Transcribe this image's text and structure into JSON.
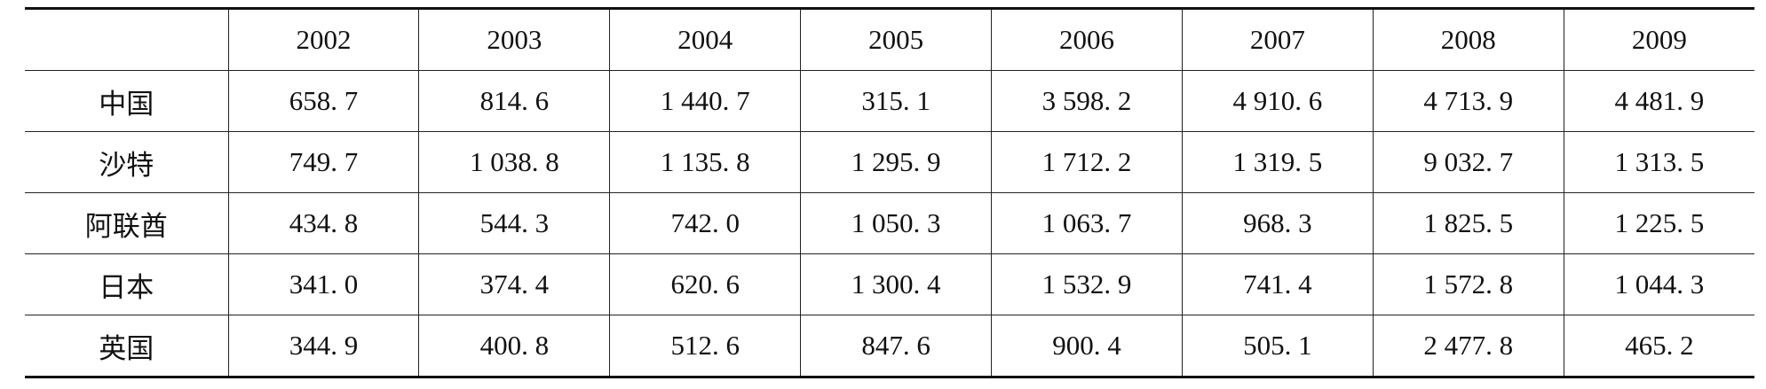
{
  "header": {
    "years": [
      "2002",
      "2003",
      "2004",
      "2005",
      "2006",
      "2007",
      "2008",
      "2009"
    ]
  },
  "table": {
    "rows": [
      {
        "label": "中国",
        "values": [
          "658. 7",
          "814. 6",
          "1 440. 7",
          "315. 1",
          "3 598. 2",
          "4 910. 6",
          "4 713. 9",
          "4 481. 9"
        ]
      },
      {
        "label": "沙特",
        "values": [
          "749. 7",
          "1 038. 8",
          "1 135. 8",
          "1 295. 9",
          "1 712. 2",
          "1 319. 5",
          "9 032. 7",
          "1 313. 5"
        ]
      },
      {
        "label": "阿联酋",
        "values": [
          "434. 8",
          "544. 3",
          "742. 0",
          "1 050. 3",
          "1 063. 7",
          "968. 3",
          "1 825. 5",
          "1 225. 5"
        ]
      },
      {
        "label": "日本",
        "values": [
          "341. 0",
          "374. 4",
          "620. 6",
          "1 300. 4",
          "1 532. 9",
          "741. 4",
          "1 572. 8",
          "1 044. 3"
        ]
      },
      {
        "label": "英国",
        "values": [
          "344. 9",
          "400. 8",
          "512. 6",
          "847. 6",
          "900. 4",
          "505. 1",
          "2 477. 8",
          "465. 2"
        ]
      }
    ]
  }
}
